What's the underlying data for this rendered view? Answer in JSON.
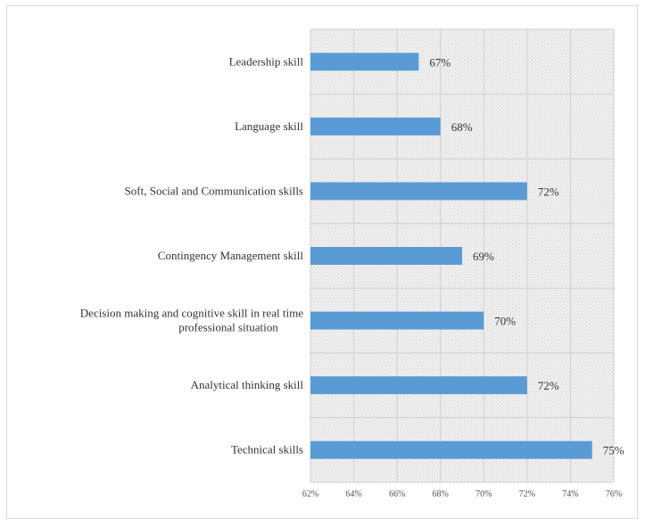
{
  "chart_data": {
    "type": "bar",
    "orientation": "horizontal",
    "categories": [
      "Leadership skill",
      "Language skill",
      "Soft, Social and Communication skills",
      "Contingency Management skill",
      "Decision making and cognitive skill in  real time professional situation",
      "Analytical thinking skill",
      "Technical skills"
    ],
    "category_lines": [
      [
        "Leadership skill"
      ],
      [
        "Language skill"
      ],
      [
        "Soft, Social and Communication skills"
      ],
      [
        "Contingency Management skill"
      ],
      [
        "Decision making and cognitive skill in  real time",
        "professional situation"
      ],
      [
        "Analytical thinking skill"
      ],
      [
        "Technical skills"
      ]
    ],
    "values": [
      67,
      68,
      72,
      69,
      70,
      72,
      75
    ],
    "value_labels": [
      "67%",
      "68%",
      "72%",
      "69%",
      "70%",
      "72%",
      "75%"
    ],
    "xlim": [
      62,
      76
    ],
    "xticks": [
      62,
      64,
      66,
      68,
      70,
      72,
      74,
      76
    ],
    "xtick_labels": [
      "62%",
      "64%",
      "66%",
      "68%",
      "70%",
      "72%",
      "74%",
      "76%"
    ],
    "title": "",
    "xlabel": "",
    "ylabel": "",
    "grid": true,
    "legend": "none",
    "bar_color": "#5b9bd5",
    "plot_background": "#e8e8e8",
    "gridline_color": "#cfcfcf"
  }
}
